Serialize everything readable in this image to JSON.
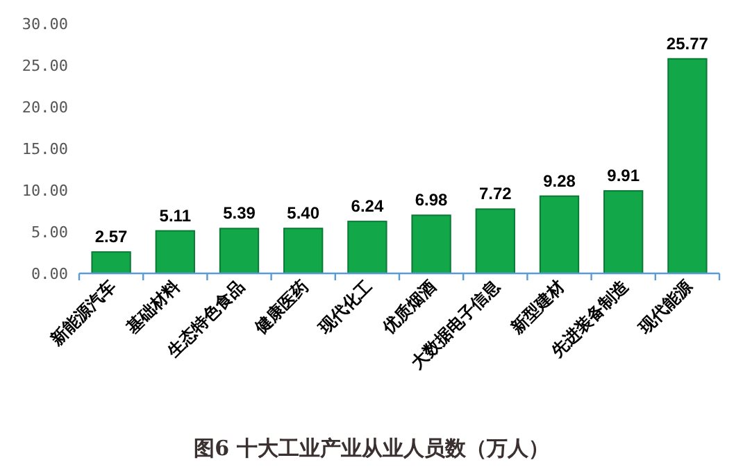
{
  "chart_data": {
    "type": "bar",
    "title": "图6  十大工业产业从业人员数（万人）",
    "categories": [
      "新能源汽车",
      "基础材料",
      "生态特色食品",
      "健康医药",
      "现代化工",
      "优质烟酒",
      "大数据电子信息",
      "新型建材",
      "先进装备制造",
      "现代能源"
    ],
    "values": [
      2.57,
      5.11,
      5.39,
      5.4,
      6.24,
      6.98,
      7.72,
      9.28,
      9.91,
      25.77
    ],
    "value_labels": [
      "2.57",
      "5.11",
      "5.39",
      "5.40",
      "6.24",
      "6.98",
      "7.72",
      "9.28",
      "9.91",
      "25.77"
    ],
    "color": "#12a84a",
    "ylim": [
      0,
      30
    ],
    "yticks": [
      {
        "value": 0,
        "label": "0.00"
      },
      {
        "value": 5,
        "label": "5.00"
      },
      {
        "value": 10,
        "label": "10.00"
      },
      {
        "value": 15,
        "label": "15.00"
      },
      {
        "value": 20,
        "label": "20.00"
      },
      {
        "value": 25,
        "label": "25.00"
      },
      {
        "value": 30,
        "label": "30.00"
      }
    ],
    "grid": false
  }
}
